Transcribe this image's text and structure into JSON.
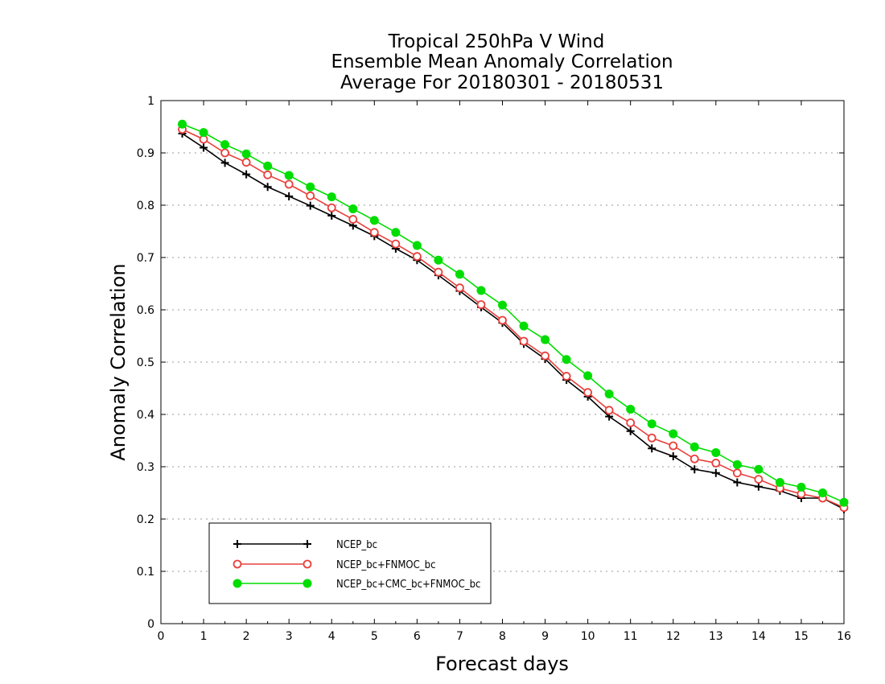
{
  "chart_data": {
    "type": "line",
    "title_lines": [
      "Tropical 250hPa V Wind",
      "Ensemble Mean Anomaly Correlation",
      "Average For 20180301 - 20180531"
    ],
    "xlabel": "Forecast days",
    "ylabel": "Anomaly Correlation",
    "xlim": [
      0,
      16
    ],
    "ylim": [
      0,
      1
    ],
    "xticks": [
      "0",
      "1",
      "2",
      "3",
      "4",
      "5",
      "6",
      "7",
      "8",
      "9",
      "10",
      "11",
      "12",
      "13",
      "14",
      "15",
      "16"
    ],
    "yticks": [
      "0",
      "0.1",
      "0.2",
      "0.3",
      "0.4",
      "0.5",
      "0.6",
      "0.7",
      "0.8",
      "0.9",
      "1"
    ],
    "grid": "horizontal dotted",
    "legend_position": "bottom-left",
    "x": [
      0.5,
      1,
      1.5,
      2,
      2.5,
      3,
      3.5,
      4,
      4.5,
      5,
      5.5,
      6,
      6.5,
      7,
      7.5,
      8,
      8.5,
      9,
      9.5,
      10,
      10.5,
      11,
      11.5,
      12,
      12.5,
      13,
      13.5,
      14,
      14.5,
      15,
      15.5,
      16
    ],
    "series": [
      {
        "name": "NCEP_bc",
        "color": "#000000",
        "marker": "plus",
        "values": [
          0.937,
          0.91,
          0.881,
          0.859,
          0.835,
          0.817,
          0.799,
          0.78,
          0.761,
          0.741,
          0.717,
          0.695,
          0.666,
          0.636,
          0.605,
          0.575,
          0.535,
          0.506,
          0.466,
          0.434,
          0.396,
          0.368,
          0.335,
          0.32,
          0.295,
          0.288,
          0.27,
          0.262,
          0.254,
          0.24,
          0.24,
          0.219
        ]
      },
      {
        "name": "NCEP_bc+FNMOC_bc",
        "color": "#e8403c",
        "marker": "open-circle",
        "values": [
          0.945,
          0.926,
          0.9,
          0.882,
          0.858,
          0.84,
          0.818,
          0.795,
          0.773,
          0.748,
          0.726,
          0.702,
          0.672,
          0.642,
          0.61,
          0.58,
          0.54,
          0.512,
          0.473,
          0.442,
          0.408,
          0.384,
          0.355,
          0.34,
          0.315,
          0.307,
          0.288,
          0.276,
          0.259,
          0.248,
          0.24,
          0.222
        ]
      },
      {
        "name": "NCEP_bc+CMC_bc+FNMOC_bc",
        "color": "#00dd00",
        "marker": "filled-circle",
        "values": [
          0.955,
          0.939,
          0.916,
          0.898,
          0.875,
          0.857,
          0.835,
          0.816,
          0.793,
          0.771,
          0.748,
          0.723,
          0.695,
          0.668,
          0.637,
          0.609,
          0.569,
          0.543,
          0.505,
          0.474,
          0.439,
          0.41,
          0.382,
          0.363,
          0.338,
          0.327,
          0.304,
          0.295,
          0.27,
          0.261,
          0.25,
          0.232
        ]
      }
    ]
  }
}
